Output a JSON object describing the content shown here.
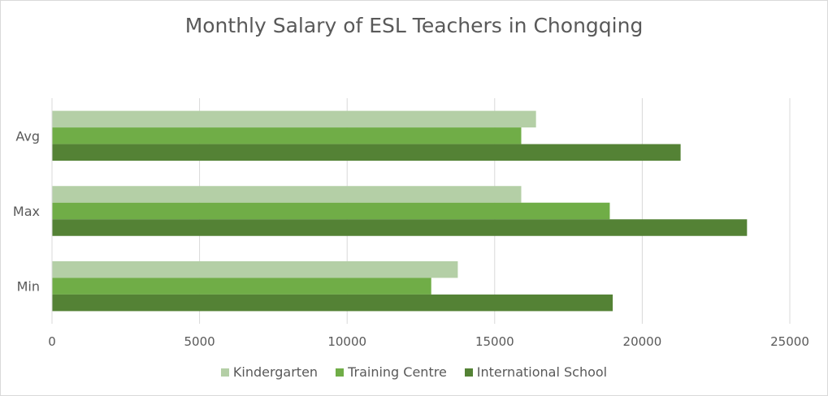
{
  "chart_data": {
    "type": "bar",
    "orientation": "horizontal",
    "title": "Monthly Salary of ESL Teachers in Chongqing",
    "categories": [
      "Avg",
      "Max",
      "Min"
    ],
    "series": [
      {
        "name": "Kindergarten",
        "color": "#b4cfa6",
        "values": [
          16400,
          15900,
          13750
        ]
      },
      {
        "name": "Training Centre",
        "color": "#70ad47",
        "values": [
          15900,
          18900,
          12850
        ]
      },
      {
        "name": "International School",
        "color": "#548235",
        "values": [
          21300,
          23550,
          19000
        ]
      }
    ],
    "xlim": [
      0,
      25000
    ],
    "xticks": [
      "0",
      "5000",
      "10000",
      "15000",
      "20000",
      "25000"
    ],
    "grid": true,
    "legend": "bottom"
  }
}
